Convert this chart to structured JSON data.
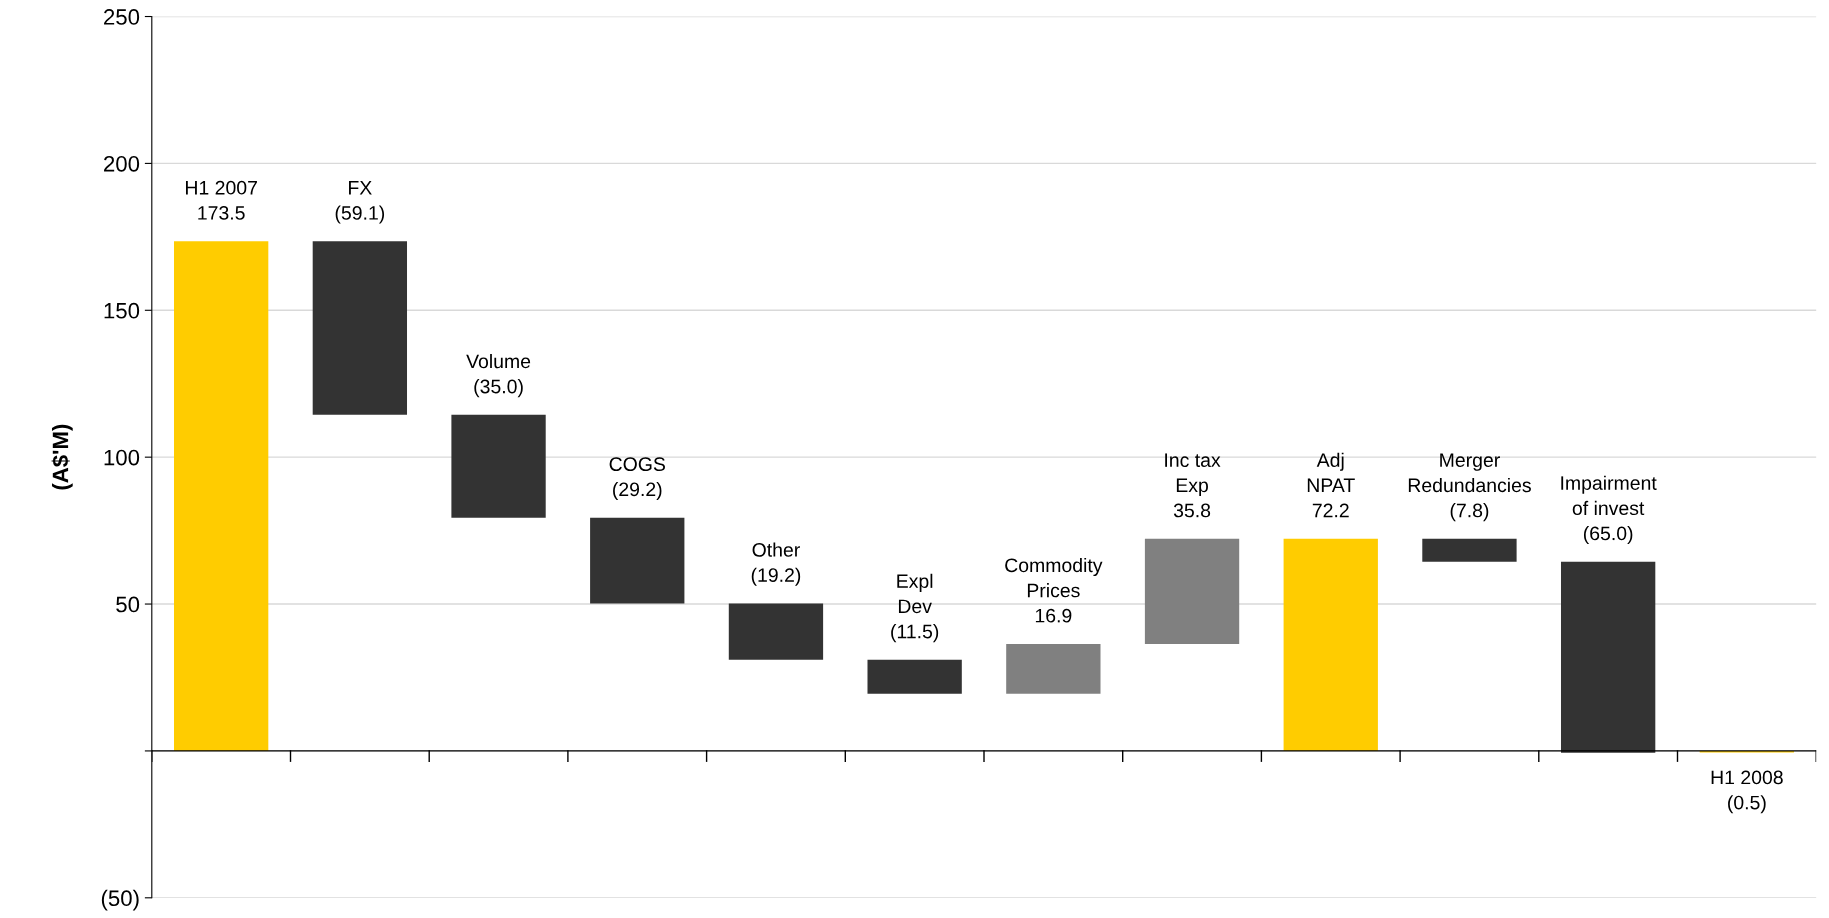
{
  "chart_data": {
    "type": "bar",
    "ylabel": "(A$'M)",
    "categories": [
      "H1 2007",
      "FX",
      "Volume",
      "COGS",
      "Other",
      "Expl\nDev",
      "Commodity\nPrices",
      "Inc tax\nExp",
      "Adj\nNPAT",
      "Merger\nRedundancies",
      "Impairment\nof invest",
      "H1 2008"
    ],
    "base": [
      0,
      173.5,
      114.4,
      79.4,
      50.2,
      31.0,
      19.5,
      36.4,
      0,
      72.2,
      64.4,
      0
    ],
    "values": [
      173.5,
      -59.1,
      -35.0,
      -29.2,
      -19.2,
      -11.5,
      16.9,
      35.8,
      72.2,
      -7.8,
      -65.0,
      -0.5
    ],
    "value_labels": [
      "173.5",
      "(59.1)",
      "(35.0)",
      "(29.2)",
      "(19.2)",
      "(11.5)",
      "16.9",
      "35.8",
      "72.2",
      "(7.8)",
      "(65.0)",
      "(0.5)"
    ],
    "colors": [
      "#ffcc00",
      "#333333",
      "#333333",
      "#333333",
      "#333333",
      "#333333",
      "#808080",
      "#808080",
      "#ffcc00",
      "#333333",
      "#333333",
      "#ffcc00"
    ],
    "ylim": [
      -50,
      250
    ],
    "yticks": [
      {
        "value": -50,
        "label": "(50)"
      },
      {
        "value": 0,
        "label": null
      },
      50,
      100,
      150,
      200,
      250
    ],
    "grid": "y",
    "tick_labels": "y"
  }
}
